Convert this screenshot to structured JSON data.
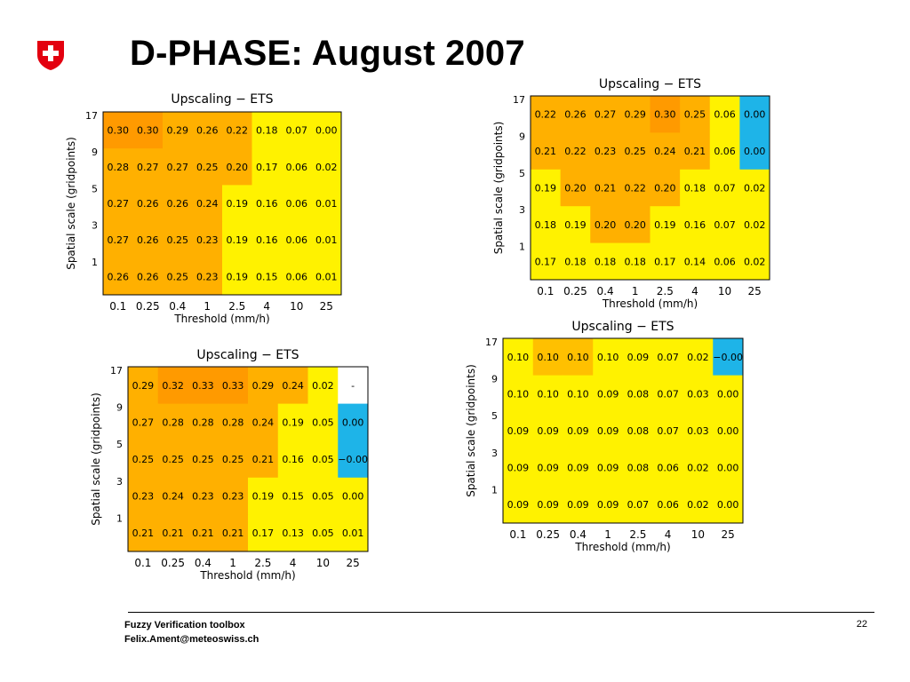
{
  "slide": {
    "title": "D-PHASE: August 2007",
    "footer_line1": "Fuzzy Verification toolbox",
    "footer_line2": "Felix.Ament@meteoswiss.ch",
    "page_number": "22",
    "logo": "swiss-cross-shield-icon"
  },
  "colors": {
    "yellow": "#FFF200",
    "light_orange": "#FFC000",
    "orange": "#FFB000",
    "dark_orange": "#FF9A00",
    "cyan": "#1EB4E8",
    "white": "#FFFFFF",
    "logo_red": "#E3000F"
  },
  "chart_data": [
    {
      "type": "heatmap",
      "title": "Upscaling − ETS",
      "xlabel": "Threshold (mm/h)",
      "ylabel": "Spatial scale (gridpoints)",
      "x_categories": [
        "0.1",
        "0.25",
        "0.4",
        "1",
        "2.5",
        "4",
        "10",
        "25"
      ],
      "y_categories": [
        "17",
        "9",
        "5",
        "3",
        "1"
      ],
      "cells": [
        [
          "0.30",
          "0.30",
          "0.29",
          "0.26",
          "0.22",
          "0.18",
          "0.07",
          "0.00"
        ],
        [
          "0.28",
          "0.27",
          "0.27",
          "0.25",
          "0.20",
          "0.17",
          "0.06",
          "0.02"
        ],
        [
          "0.27",
          "0.26",
          "0.26",
          "0.24",
          "0.19",
          "0.16",
          "0.06",
          "0.01"
        ],
        [
          "0.27",
          "0.26",
          "0.25",
          "0.23",
          "0.19",
          "0.16",
          "0.06",
          "0.01"
        ],
        [
          "0.26",
          "0.26",
          "0.25",
          "0.23",
          "0.19",
          "0.15",
          "0.06",
          "0.01"
        ]
      ]
    },
    {
      "type": "heatmap",
      "title": "Upscaling − ETS",
      "xlabel": "Threshold (mm/h)",
      "ylabel": "Spatial scale (gridpoints)",
      "x_categories": [
        "0.1",
        "0.25",
        "0.4",
        "1",
        "2.5",
        "4",
        "10",
        "25"
      ],
      "y_categories": [
        "17",
        "9",
        "5",
        "3",
        "1"
      ],
      "cells": [
        [
          "0.22",
          "0.26",
          "0.27",
          "0.29",
          "0.30",
          "0.25",
          "0.06",
          "0.00"
        ],
        [
          "0.21",
          "0.22",
          "0.23",
          "0.25",
          "0.24",
          "0.21",
          "0.06",
          "0.00"
        ],
        [
          "0.19",
          "0.20",
          "0.21",
          "0.22",
          "0.20",
          "0.18",
          "0.07",
          "0.02"
        ],
        [
          "0.18",
          "0.19",
          "0.20",
          "0.20",
          "0.19",
          "0.16",
          "0.07",
          "0.02"
        ],
        [
          "0.17",
          "0.18",
          "0.18",
          "0.18",
          "0.17",
          "0.14",
          "0.06",
          "0.02"
        ]
      ]
    },
    {
      "type": "heatmap",
      "title": "Upscaling − ETS",
      "xlabel": "Threshold (mm/h)",
      "ylabel": "Spatial scale (gridpoints)",
      "x_categories": [
        "0.1",
        "0.25",
        "0.4",
        "1",
        "2.5",
        "4",
        "10",
        "25"
      ],
      "y_categories": [
        "17",
        "9",
        "5",
        "3",
        "1"
      ],
      "cells": [
        [
          "0.29",
          "0.32",
          "0.33",
          "0.33",
          "0.29",
          "0.24",
          "0.02",
          "-"
        ],
        [
          "0.27",
          "0.28",
          "0.28",
          "0.28",
          "0.24",
          "0.19",
          "0.05",
          "0.00"
        ],
        [
          "0.25",
          "0.25",
          "0.25",
          "0.25",
          "0.21",
          "0.16",
          "0.05",
          "−0.00"
        ],
        [
          "0.23",
          "0.24",
          "0.23",
          "0.23",
          "0.19",
          "0.15",
          "0.05",
          "0.00"
        ],
        [
          "0.21",
          "0.21",
          "0.21",
          "0.21",
          "0.17",
          "0.13",
          "0.05",
          "0.01"
        ]
      ]
    },
    {
      "type": "heatmap",
      "title": "Upscaling − ETS",
      "xlabel": "Threshold (mm/h)",
      "ylabel": "Spatial scale (gridpoints)",
      "x_categories": [
        "0.1",
        "0.25",
        "0.4",
        "1",
        "2.5",
        "4",
        "10",
        "25"
      ],
      "y_categories": [
        "17",
        "9",
        "5",
        "3",
        "1"
      ],
      "cells": [
        [
          "0.10",
          "0.10",
          "0.10",
          "0.10",
          "0.09",
          "0.07",
          "0.02",
          "−0.00"
        ],
        [
          "0.10",
          "0.10",
          "0.10",
          "0.09",
          "0.08",
          "0.07",
          "0.03",
          "0.00"
        ],
        [
          "0.09",
          "0.09",
          "0.09",
          "0.09",
          "0.08",
          "0.07",
          "0.03",
          "0.00"
        ],
        [
          "0.09",
          "0.09",
          "0.09",
          "0.09",
          "0.08",
          "0.06",
          "0.02",
          "0.00"
        ],
        [
          "0.09",
          "0.09",
          "0.09",
          "0.09",
          "0.07",
          "0.06",
          "0.02",
          "0.00"
        ]
      ]
    }
  ]
}
